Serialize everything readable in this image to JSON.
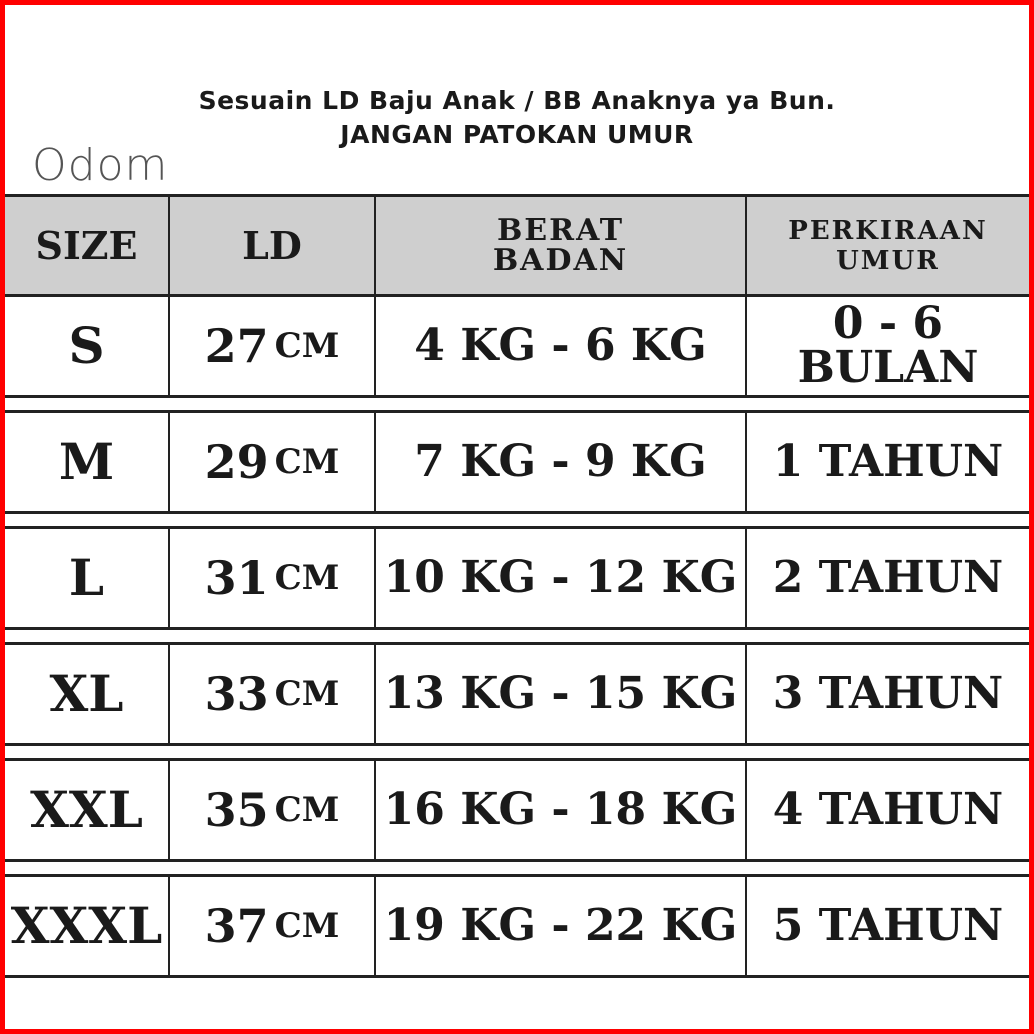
{
  "header": {
    "line1": "Sesuain LD Baju Anak / BB Anaknya ya Bun.",
    "line2": "JANGAN PATOKAN UMUR",
    "logo": "Odom"
  },
  "colors": {
    "frame": "#ff0000",
    "header_bg": "#cfcfcf",
    "text": "#1a1a1a"
  },
  "table": {
    "columns": [
      "SIZE",
      "LD",
      "BERAT BADAN",
      "PERKIRAAN UMUR"
    ],
    "column_lines": [
      [
        "SIZE"
      ],
      [
        "LD"
      ],
      [
        "BERAT",
        "BADAN"
      ],
      [
        "PERKIRAAN",
        "UMUR"
      ]
    ],
    "rows": [
      {
        "size": "S",
        "ld": "27",
        "unit": "CM",
        "weight": "4 KG - 6 KG",
        "age": "0 - 6 BULAN"
      },
      {
        "size": "M",
        "ld": "29",
        "unit": "CM",
        "weight": "7 KG - 9 KG",
        "age": "1 TAHUN"
      },
      {
        "size": "L",
        "ld": "31",
        "unit": "CM",
        "weight": "10 KG - 12 KG",
        "age": "2 TAHUN"
      },
      {
        "size": "XL",
        "ld": "33",
        "unit": "CM",
        "weight": "13 KG - 15 KG",
        "age": "3 TAHUN"
      },
      {
        "size": "XXL",
        "ld": "35",
        "unit": "CM",
        "weight": "16 KG - 18 KG",
        "age": "4 TAHUN"
      },
      {
        "size": "XXXL",
        "ld": "37",
        "unit": "CM",
        "weight": "19 KG - 22 KG",
        "age": "5 TAHUN"
      }
    ]
  }
}
